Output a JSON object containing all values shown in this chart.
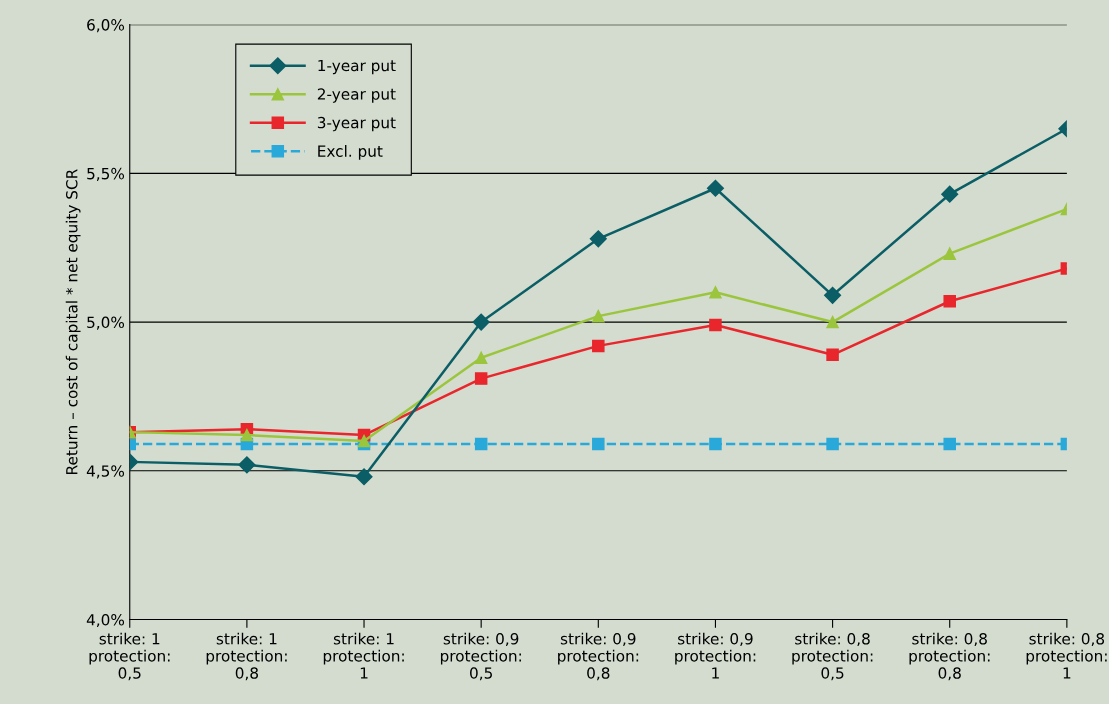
{
  "chart_data": {
    "type": "line",
    "ylabel": "Return – cost of capital * net equity SCR",
    "categories": [
      "strike: 1\nprotection:\n0,5",
      "strike: 1\nprotection:\n0,8",
      "strike: 1\nprotection:\n1",
      "strike: 0,9\nprotection:\n0,5",
      "strike: 0,9\nprotection:\n0,8",
      "strike: 0,9\nprotection:\n1",
      "strike: 0,8\nprotection:\n0,5",
      "strike: 0,8\nprotection:\n0,8",
      "strike: 0,8\nprotection:\n1"
    ],
    "series": [
      {
        "name": "1-year put",
        "color": "#0b5e66",
        "marker": "diamond",
        "line_style": "solid",
        "values": [
          4.53,
          4.52,
          4.48,
          5.0,
          5.28,
          5.45,
          5.09,
          5.43,
          5.65
        ]
      },
      {
        "name": "2-year put",
        "color": "#9bc53d",
        "marker": "triangle",
        "line_style": "solid",
        "values": [
          4.63,
          4.62,
          4.6,
          4.88,
          5.02,
          5.1,
          5.0,
          5.23,
          5.38
        ]
      },
      {
        "name": "3-year put",
        "color": "#e8262c",
        "marker": "square",
        "line_style": "solid",
        "values": [
          4.63,
          4.64,
          4.62,
          4.81,
          4.92,
          4.99,
          4.89,
          5.07,
          5.18
        ]
      },
      {
        "name": "Excl. put",
        "color": "#29a9d9",
        "marker": "square",
        "line_style": "dashed",
        "values": [
          4.59,
          4.59,
          4.59,
          4.59,
          4.59,
          4.59,
          4.59,
          4.59,
          4.59
        ]
      }
    ],
    "ylim": [
      4.0,
      6.0
    ],
    "yticks": [
      {
        "value": 4.0,
        "label": "4,0%"
      },
      {
        "value": 4.5,
        "label": "4,5%"
      },
      {
        "value": 5.0,
        "label": "5,0%"
      },
      {
        "value": 5.5,
        "label": "5,5%"
      },
      {
        "value": 6.0,
        "label": "6,0%"
      }
    ],
    "grid": "y",
    "legend": "top left"
  }
}
